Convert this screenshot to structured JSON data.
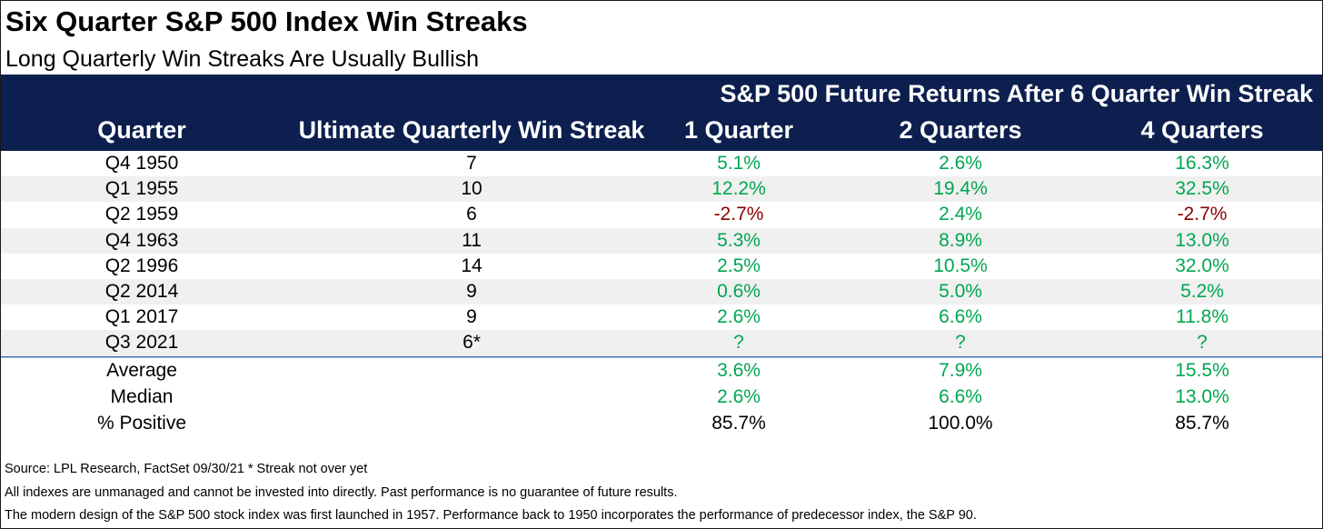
{
  "title": "Six Quarter S&P 500 Index Win Streaks",
  "subtitle": "Long Quarterly Win Streaks Are Usually Bullish",
  "header": {
    "group_label": "S&P 500 Future Returns After 6 Quarter Win Streak",
    "columns": [
      "Quarter",
      "Ultimate Quarterly Win Streak",
      "1 Quarter",
      "2 Quarters",
      "4 Quarters"
    ]
  },
  "rows": [
    {
      "quarter": "Q4 1950",
      "streak": "7",
      "q1": "5.1%",
      "q2": "2.6%",
      "q4": "16.3%"
    },
    {
      "quarter": "Q1 1955",
      "streak": "10",
      "q1": "12.2%",
      "q2": "19.4%",
      "q4": "32.5%"
    },
    {
      "quarter": "Q2 1959",
      "streak": "6",
      "q1": "-2.7%",
      "q2": "2.4%",
      "q4": "-2.7%"
    },
    {
      "quarter": "Q4 1963",
      "streak": "11",
      "q1": "5.3%",
      "q2": "8.9%",
      "q4": "13.0%"
    },
    {
      "quarter": "Q2 1996",
      "streak": "14",
      "q1": "2.5%",
      "q2": "10.5%",
      "q4": "32.0%"
    },
    {
      "quarter": "Q2 2014",
      "streak": "9",
      "q1": "0.6%",
      "q2": "5.0%",
      "q4": "5.2%"
    },
    {
      "quarter": "Q1 2017",
      "streak": "9",
      "q1": "2.6%",
      "q2": "6.6%",
      "q4": "11.8%"
    },
    {
      "quarter": "Q3 2021",
      "streak": "6*",
      "q1": "?",
      "q2": "?",
      "q4": "?"
    }
  ],
  "summary": [
    {
      "label": "Average",
      "q1": "3.6%",
      "q2": "7.9%",
      "q4": "15.5%"
    },
    {
      "label": "Median",
      "q1": "2.6%",
      "q2": "6.6%",
      "q4": "13.0%"
    },
    {
      "label": "% Positive",
      "q1": "85.7%",
      "q2": "100.0%",
      "q4": "85.7%"
    }
  ],
  "footnotes": [
    "Source: LPL Research, FactSet 09/30/21     * Streak not over yet",
    "All indexes are unmanaged and cannot be invested into directly. Past performance is no guarantee of future results.",
    "The modern design of the S&P 500 stock index was first launched in 1957. Performance back to 1950 incorporates the performance of predecessor index, the S&P 90."
  ],
  "colors": {
    "header_bg": "#0c1f4e",
    "positive": "#00a651",
    "negative": "#8b0000",
    "stripe": "#f0f0f0"
  }
}
